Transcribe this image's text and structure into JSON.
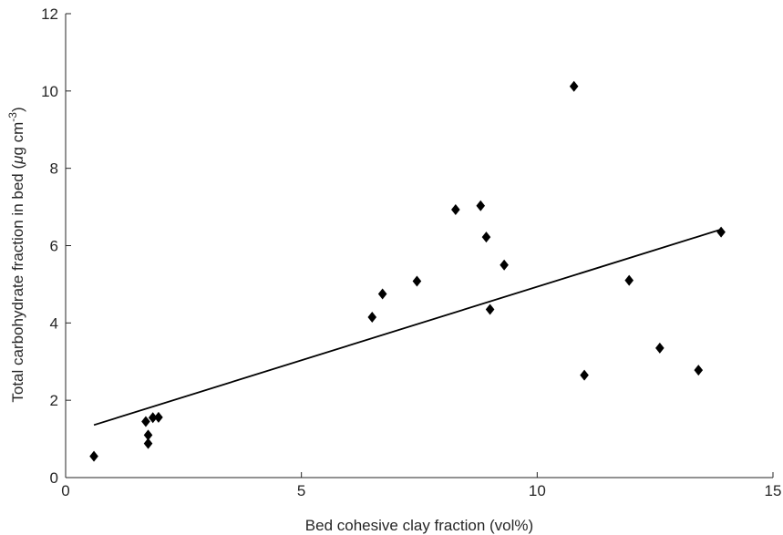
{
  "chart_data": {
    "type": "scatter",
    "title": "",
    "xlabel": "Bed cohesive clay fraction (vol%)",
    "ylabel": {
      "prefix": "Total carbohydrate fraction in bed (",
      "mu": "μ",
      "unit": "g cm",
      "exponent": "-3",
      "suffix": ")"
    },
    "xlim": [
      0,
      15
    ],
    "ylim": [
      0,
      12
    ],
    "xticks": [
      0,
      5,
      10,
      15
    ],
    "yticks": [
      0,
      2,
      4,
      6,
      8,
      10,
      12
    ],
    "grid": false,
    "legend": "none",
    "colors": {
      "marker": "#000000",
      "line": "#000000",
      "axis": "#262626"
    },
    "points": [
      {
        "x": 0.6,
        "y": 0.55
      },
      {
        "x": 1.7,
        "y": 1.45
      },
      {
        "x": 1.75,
        "y": 1.1
      },
      {
        "x": 1.75,
        "y": 0.88
      },
      {
        "x": 1.85,
        "y": 1.55
      },
      {
        "x": 1.97,
        "y": 1.56
      },
      {
        "x": 6.5,
        "y": 4.15
      },
      {
        "x": 6.72,
        "y": 4.75
      },
      {
        "x": 7.45,
        "y": 5.08
      },
      {
        "x": 8.27,
        "y": 6.93
      },
      {
        "x": 8.8,
        "y": 7.03
      },
      {
        "x": 8.92,
        "y": 6.22
      },
      {
        "x": 9.0,
        "y": 4.35
      },
      {
        "x": 9.3,
        "y": 5.5
      },
      {
        "x": 10.78,
        "y": 10.12
      },
      {
        "x": 11.0,
        "y": 2.65
      },
      {
        "x": 11.95,
        "y": 5.1
      },
      {
        "x": 12.6,
        "y": 3.35
      },
      {
        "x": 13.42,
        "y": 2.78
      },
      {
        "x": 13.9,
        "y": 6.35
      }
    ],
    "fit_line": {
      "x": [
        0.6,
        13.9
      ],
      "y": [
        1.36,
        6.42
      ]
    }
  }
}
